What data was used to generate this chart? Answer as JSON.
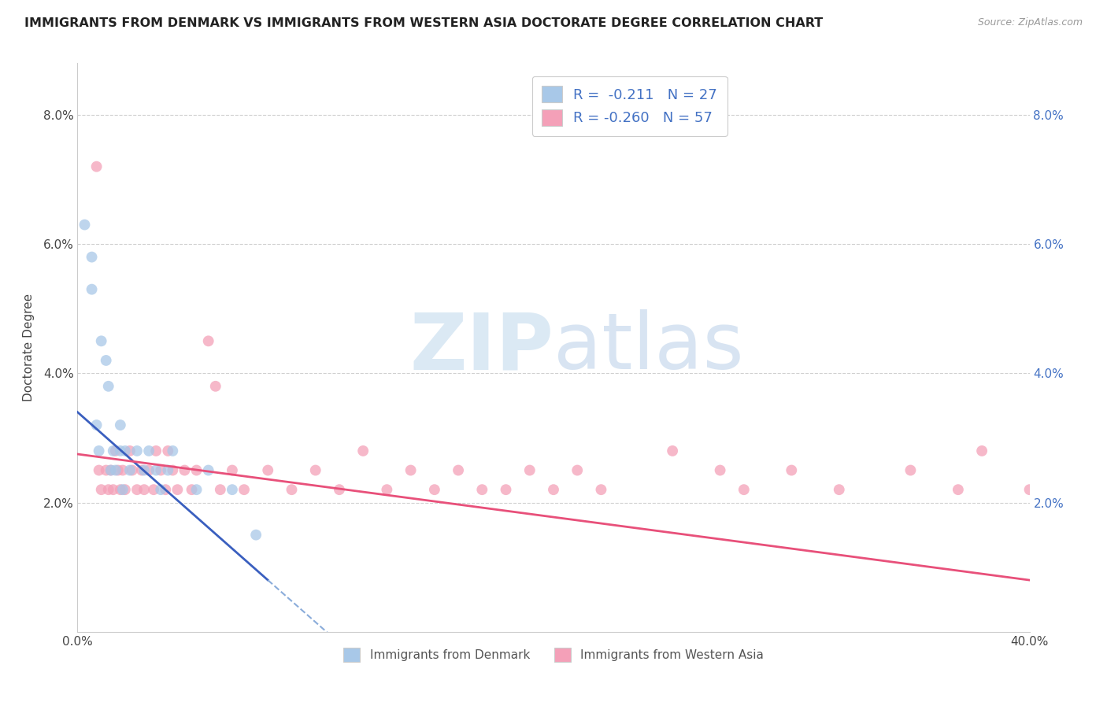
{
  "title": "IMMIGRANTS FROM DENMARK VS IMMIGRANTS FROM WESTERN ASIA DOCTORATE DEGREE CORRELATION CHART",
  "source_text": "Source: ZipAtlas.com",
  "ylabel": "Doctorate Degree",
  "xlim": [
    0.0,
    0.4
  ],
  "ylim": [
    0.0,
    0.088
  ],
  "x_ticks": [
    0.0,
    0.05,
    0.1,
    0.15,
    0.2,
    0.25,
    0.3,
    0.35,
    0.4
  ],
  "x_tick_labels": [
    "0.0%",
    "",
    "",
    "",
    "",
    "",
    "",
    "",
    "40.0%"
  ],
  "y_ticks": [
    0.0,
    0.02,
    0.04,
    0.06,
    0.08
  ],
  "y_tick_labels": [
    "",
    "2.0%",
    "4.0%",
    "6.0%",
    "8.0%"
  ],
  "denmark_color": "#a8c8e8",
  "western_asia_color": "#f4a0b8",
  "denmark_line_color": "#3a5fbf",
  "denmark_dashed_color": "#8aacda",
  "western_asia_line_color": "#e8507a",
  "right_tick_color": "#4472c4",
  "legend_text_color": "#4472c4",
  "watermark_color": "#cce0f0",
  "background_color": "#ffffff",
  "grid_color": "#d0d0d0",
  "dot_size": 100,
  "dk_x": [
    0.003,
    0.006,
    0.006,
    0.008,
    0.009,
    0.01,
    0.012,
    0.013,
    0.014,
    0.015,
    0.016,
    0.018,
    0.018,
    0.019,
    0.02,
    0.022,
    0.025,
    0.028,
    0.03,
    0.033,
    0.035,
    0.038,
    0.04,
    0.05,
    0.055,
    0.065,
    0.075
  ],
  "dk_y": [
    0.063,
    0.058,
    0.053,
    0.032,
    0.028,
    0.045,
    0.042,
    0.038,
    0.025,
    0.028,
    0.025,
    0.032,
    0.028,
    0.022,
    0.028,
    0.025,
    0.028,
    0.025,
    0.028,
    0.025,
    0.022,
    0.025,
    0.028,
    0.022,
    0.025,
    0.022,
    0.015
  ],
  "wa_x": [
    0.008,
    0.009,
    0.01,
    0.012,
    0.013,
    0.014,
    0.015,
    0.016,
    0.017,
    0.018,
    0.019,
    0.02,
    0.022,
    0.023,
    0.025,
    0.027,
    0.028,
    0.03,
    0.032,
    0.033,
    0.035,
    0.037,
    0.038,
    0.04,
    0.042,
    0.045,
    0.048,
    0.05,
    0.055,
    0.058,
    0.06,
    0.065,
    0.07,
    0.08,
    0.09,
    0.1,
    0.11,
    0.12,
    0.13,
    0.14,
    0.15,
    0.16,
    0.17,
    0.18,
    0.19,
    0.2,
    0.21,
    0.22,
    0.25,
    0.27,
    0.28,
    0.3,
    0.32,
    0.35,
    0.37,
    0.38,
    0.4
  ],
  "wa_y": [
    0.072,
    0.025,
    0.022,
    0.025,
    0.022,
    0.025,
    0.022,
    0.028,
    0.025,
    0.022,
    0.025,
    0.022,
    0.028,
    0.025,
    0.022,
    0.025,
    0.022,
    0.025,
    0.022,
    0.028,
    0.025,
    0.022,
    0.028,
    0.025,
    0.022,
    0.025,
    0.022,
    0.025,
    0.045,
    0.038,
    0.022,
    0.025,
    0.022,
    0.025,
    0.022,
    0.025,
    0.022,
    0.028,
    0.022,
    0.025,
    0.022,
    0.025,
    0.022,
    0.022,
    0.025,
    0.022,
    0.025,
    0.022,
    0.028,
    0.025,
    0.022,
    0.025,
    0.022,
    0.025,
    0.022,
    0.028,
    0.022
  ],
  "dk_trend_x0": 0.0,
  "dk_trend_y0": 0.034,
  "dk_trend_x1": 0.08,
  "dk_trend_y1": 0.008,
  "wa_trend_x0": 0.0,
  "wa_trend_y0": 0.0275,
  "wa_trend_x1": 0.4,
  "wa_trend_y1": 0.008
}
